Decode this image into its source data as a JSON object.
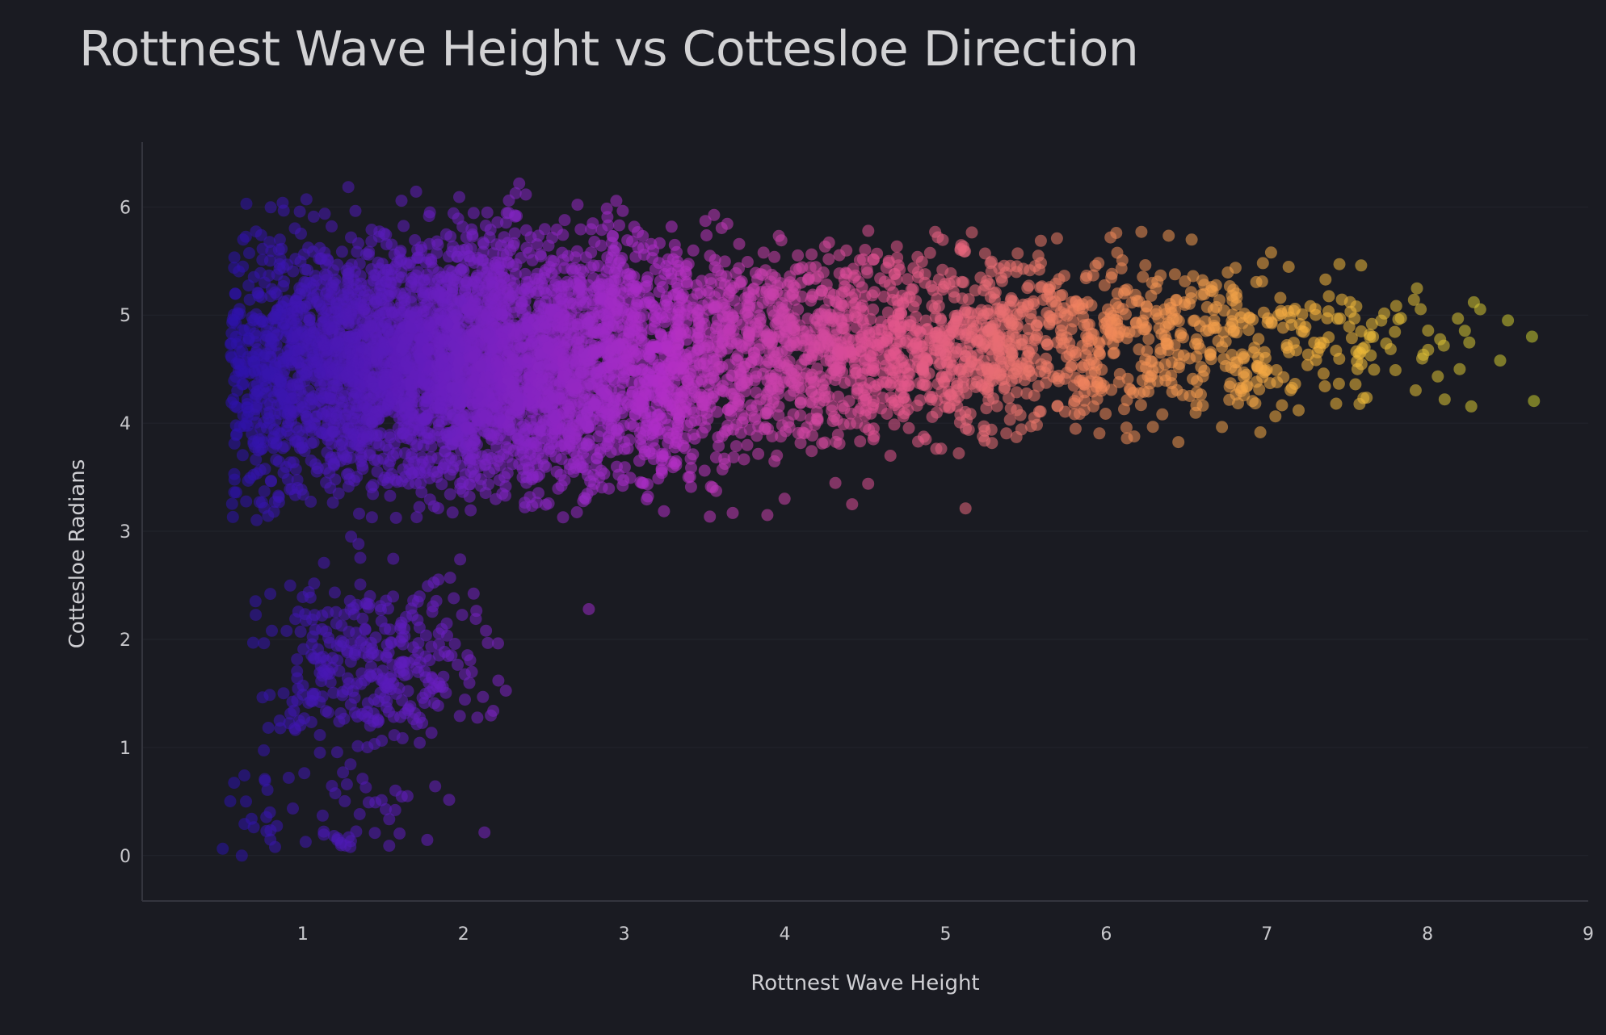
{
  "chart_data": {
    "type": "scatter",
    "title": "Rottnest Wave Height vs Cottesloe Direction",
    "xlabel": "Rottnest Wave Height",
    "ylabel": "Cottesloe Radians",
    "xlim": [
      0,
      9.0
    ],
    "ylim": [
      -0.42,
      6.6
    ],
    "x_ticks": [
      "1",
      "2",
      "3",
      "4",
      "5",
      "6",
      "7",
      "8",
      "9"
    ],
    "y_ticks": [
      "0",
      "1",
      "2",
      "3",
      "4",
      "5",
      "6"
    ],
    "grid": true,
    "legend": "none",
    "colorscale": [
      "#2a12a8",
      "#6a1fbf",
      "#b02ec6",
      "#e0528f",
      "#f0875a",
      "#f5b43c",
      "#c6cc2e"
    ],
    "color_by": "x",
    "clusters": [
      {
        "name": "",
        "x_mean": 2.0,
        "x_sd": 1.0,
        "x_min": 0.55,
        "x_max": 5.5,
        "y_mean": 4.55,
        "y_sd": 0.58,
        "y_min": 3.1,
        "y_max": 6.25,
        "count": 4200
      },
      {
        "name": "",
        "x_mean": 4.8,
        "x_sd": 1.0,
        "x_min": 3.0,
        "x_max": 7.2,
        "y_mean": 4.75,
        "y_sd": 0.45,
        "y_min": 3.8,
        "y_max": 5.8,
        "count": 1300
      },
      {
        "name": "",
        "x_mean": 6.8,
        "x_sd": 0.7,
        "x_min": 5.8,
        "x_max": 8.7,
        "y_mean": 4.75,
        "y_sd": 0.35,
        "y_min": 4.0,
        "y_max": 5.5,
        "count": 260
      },
      {
        "name": "",
        "x_mean": 1.45,
        "x_sd": 0.35,
        "x_min": 0.6,
        "x_max": 2.3,
        "y_mean": 1.75,
        "y_sd": 0.45,
        "y_min": 0.9,
        "y_max": 2.9,
        "count": 320
      },
      {
        "name": "",
        "x_mean": 1.1,
        "x_sd": 0.45,
        "x_min": 0.5,
        "x_max": 2.2,
        "y_mean": 0.35,
        "y_sd": 0.3,
        "y_min": 0.0,
        "y_max": 0.9,
        "count": 60
      }
    ],
    "outliers": [
      {
        "x": 2.78,
        "y": 2.28
      },
      {
        "x": 0.62,
        "y": 0.0
      },
      {
        "x": 8.65,
        "y": 4.8
      },
      {
        "x": 8.5,
        "y": 4.95
      },
      {
        "x": 8.2,
        "y": 4.5
      },
      {
        "x": 3.4,
        "y": 3.5
      },
      {
        "x": 1.3,
        "y": 2.95
      }
    ]
  }
}
